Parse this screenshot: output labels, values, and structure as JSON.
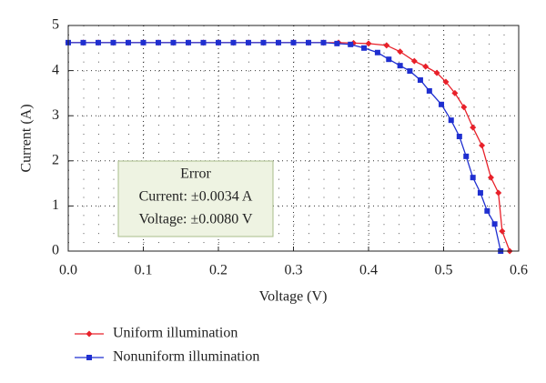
{
  "chart_data": {
    "type": "line",
    "xlabel": "Voltage (V)",
    "ylabel": "Current (A)",
    "xlim": [
      0,
      0.6
    ],
    "ylim": [
      0,
      5
    ],
    "xticks": [
      {
        "value": 0,
        "label": "0.0"
      },
      0.1,
      0.2,
      0.3,
      0.4,
      0.5,
      0.6
    ],
    "yticks": [
      0,
      1,
      2,
      3,
      4,
      5
    ],
    "grid": true,
    "legend": "bottom",
    "annotation": {
      "title": "Error",
      "lines": [
        "Current: ±0.0034 A",
        "Voltage: ±0.0080 V"
      ]
    },
    "series": [
      {
        "name": "Uniform illumination",
        "color": "#e8212a",
        "marker": "diamond",
        "x": [
          0,
          0.02,
          0.04,
          0.06,
          0.08,
          0.1,
          0.12,
          0.14,
          0.16,
          0.18,
          0.2,
          0.22,
          0.24,
          0.26,
          0.28,
          0.3,
          0.32,
          0.34,
          0.36,
          0.38,
          0.4,
          0.424,
          0.442,
          0.461,
          0.476,
          0.491,
          0.503,
          0.515,
          0.527,
          0.539,
          0.551,
          0.563,
          0.573,
          0.578,
          0.588
        ],
        "values": [
          4.62,
          4.62,
          4.62,
          4.62,
          4.62,
          4.62,
          4.62,
          4.62,
          4.62,
          4.62,
          4.62,
          4.62,
          4.62,
          4.62,
          4.62,
          4.62,
          4.62,
          4.62,
          4.62,
          4.61,
          4.6,
          4.56,
          4.42,
          4.21,
          4.09,
          3.95,
          3.75,
          3.5,
          3.19,
          2.74,
          2.34,
          1.63,
          1.29,
          0.44,
          0
        ]
      },
      {
        "name": "Nonuniform illumination",
        "color": "#1f2fd0",
        "marker": "square",
        "x": [
          0,
          0.02,
          0.04,
          0.06,
          0.08,
          0.1,
          0.12,
          0.14,
          0.16,
          0.18,
          0.2,
          0.22,
          0.24,
          0.26,
          0.28,
          0.3,
          0.32,
          0.34,
          0.358,
          0.376,
          0.394,
          0.412,
          0.427,
          0.442,
          0.455,
          0.469,
          0.481,
          0.497,
          0.51,
          0.521,
          0.53,
          0.539,
          0.549,
          0.558,
          0.568,
          0.576
        ],
        "values": [
          4.62,
          4.62,
          4.62,
          4.62,
          4.62,
          4.62,
          4.62,
          4.62,
          4.62,
          4.62,
          4.62,
          4.62,
          4.62,
          4.62,
          4.62,
          4.62,
          4.62,
          4.62,
          4.6,
          4.58,
          4.5,
          4.4,
          4.25,
          4.11,
          3.99,
          3.79,
          3.55,
          3.25,
          2.9,
          2.54,
          2.1,
          1.63,
          1.29,
          0.89,
          0.6,
          0
        ]
      }
    ]
  }
}
